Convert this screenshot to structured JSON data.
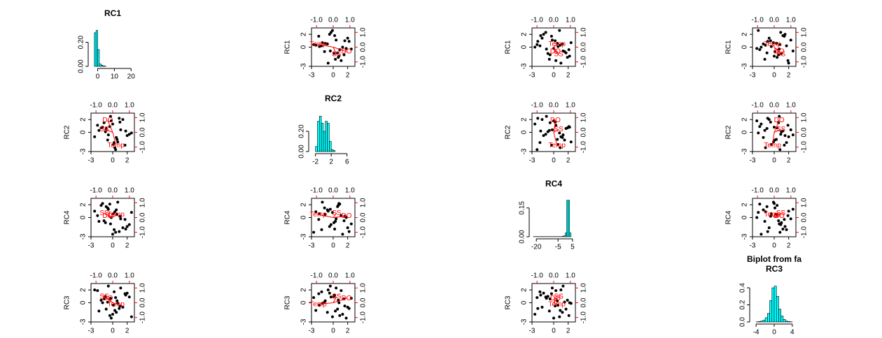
{
  "chart_data": {
    "type": "biplot-matrix",
    "title": "Biplot from fa",
    "point_color": "#000000",
    "loading_color": "#ff0000",
    "hist_color": "#00ffff",
    "score_lim": [
      -3,
      3
    ],
    "score_ticks": [
      -3,
      0,
      2
    ],
    "loading_lim": [
      -1.3,
      1.3
    ],
    "loading_ticks": [
      {
        "value": -1,
        "label": "-1.0"
      },
      {
        "value": 0,
        "label": "0.0"
      },
      {
        "value": 1,
        "label": "1.0"
      }
    ],
    "factors": [
      {
        "name": "RC1",
        "scores": [
          0.5,
          -1.2,
          1.8,
          0.1,
          -0.4,
          2.3,
          -2.1,
          0.9,
          -0.7,
          1.1,
          0.3,
          -1.6,
          2.0,
          -0.2,
          0.7,
          -1.0,
          1.4,
          -2.5,
          0.0,
          0.6,
          -0.9,
          1.7,
          -0.3,
          2.6,
          -1.4,
          0.2,
          1.0,
          -0.6,
          -1.9,
          0.4
        ],
        "hist": {
          "bins": [
            -2,
            -1,
            0,
            1,
            2,
            3,
            4,
            5
          ],
          "counts": [
            0.28,
            0.3,
            0.14,
            0.02,
            0.01,
            0.005,
            0.002
          ],
          "xlim": [
            -4,
            22
          ],
          "xticks": [
            0,
            10,
            20
          ],
          "ylim": [
            0,
            0.32
          ],
          "yticks": [
            {
              "value": 0,
              "label": "0.00"
            },
            {
              "value": 0.2,
              "label": "0.20"
            }
          ]
        }
      },
      {
        "name": "RC2",
        "scores": [
          -0.8,
          1.5,
          0.2,
          -1.9,
          0.9,
          -0.3,
          1.1,
          2.2,
          -1.2,
          0.4,
          -2.4,
          0.7,
          -0.5,
          1.8,
          -1.5,
          0.1,
          2.0,
          -0.7,
          1.3,
          -1.1,
          0.6,
          -2.0,
          2.5,
          -0.1,
          0.8,
          -1.6,
          1.6,
          -0.4,
          0.3,
          -2.7
        ],
        "hist": {
          "bins": [
            -2,
            -1.5,
            -1,
            -0.5,
            0,
            0.5,
            1,
            1.5,
            2,
            2.5,
            3
          ],
          "counts": [
            0.05,
            0.3,
            0.35,
            0.28,
            0.2,
            0.3,
            0.28,
            0.1,
            0.02,
            0.01
          ],
          "xlim": [
            -3,
            8
          ],
          "xticks": [
            -2,
            2,
            6
          ],
          "ylim": [
            0,
            0.38
          ],
          "yticks": [
            {
              "value": 0,
              "label": "0.00"
            },
            {
              "value": 0.2,
              "label": "0.20"
            }
          ]
        }
      },
      {
        "name": "RC4",
        "scores": [
          1.2,
          -0.5,
          -1.8,
          0.6,
          2.1,
          -1.1,
          0.3,
          -2.2,
          1.5,
          -0.2,
          0.9,
          1.9,
          -1.4,
          0.0,
          2.4,
          -0.8,
          -1.6,
          1.0,
          -2.6,
          0.5,
          1.7,
          -0.3,
          -1.0,
          0.8,
          2.2,
          -1.9,
          0.2,
          1.3,
          -0.6,
          -2.3
        ],
        "hist": {
          "bins": [
            -22,
            -2,
            -1,
            0,
            1,
            2,
            3,
            4
          ],
          "counts": [
            0.001,
            0.003,
            0.005,
            0.02,
            0.19,
            0.19,
            0.02
          ],
          "xlim": [
            -23,
            7
          ],
          "xticks": [
            -20,
            -5,
            5
          ],
          "ylim": [
            0,
            0.2
          ],
          "yticks": [
            {
              "value": 0,
              "label": "0.00"
            },
            {
              "value": 0.15,
              "label": "0.15"
            }
          ]
        }
      },
      {
        "name": "RC3",
        "scores": [
          -1.5,
          0.6,
          1.2,
          -0.4,
          -2.0,
          0.9,
          1.9,
          -0.9,
          0.1,
          2.3,
          -1.2,
          0.4,
          1.5,
          -2.4,
          -0.1,
          1.0,
          -0.7,
          2.0,
          -1.8,
          0.3,
          -1.0,
          1.4,
          0.7,
          -2.2,
          0.0,
          1.7,
          -0.5,
          2.6,
          -1.3,
          0.8
        ],
        "hist": {
          "bins": [
            -4,
            -3.5,
            -3,
            -2.5,
            -2,
            -1.5,
            -1,
            -0.5,
            0,
            0.5,
            1,
            1.5,
            2,
            2.5,
            3,
            3.5,
            4
          ],
          "counts": [
            0.002,
            0.005,
            0.01,
            0.02,
            0.05,
            0.1,
            0.25,
            0.4,
            0.42,
            0.3,
            0.15,
            0.07,
            0.03,
            0.01,
            0.005,
            0.002
          ],
          "xlim": [
            -4.8,
            4.8
          ],
          "xticks": [
            -4,
            0,
            4
          ],
          "ylim": [
            0,
            0.45
          ],
          "yticks": [
            {
              "value": 0,
              "label": "0.0"
            },
            {
              "value": 0.2,
              "label": "0.2"
            },
            {
              "value": 0.4,
              "label": "0.4"
            }
          ]
        }
      }
    ],
    "loadings": [
      {
        "name": "DO",
        "values": [
          -0.3,
          0.8,
          0.1,
          0.3
        ]
      },
      {
        "name": "Temp",
        "values": [
          0.2,
          -0.9,
          0.2,
          -0.1
        ]
      },
      {
        "name": "SS",
        "values": [
          -0.5,
          0.2,
          0.3,
          0.4
        ]
      }
    ]
  }
}
